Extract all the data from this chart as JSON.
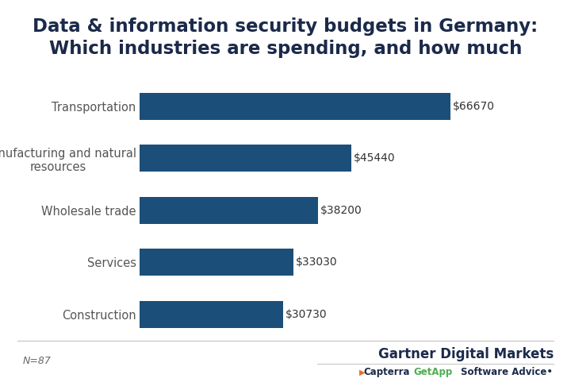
{
  "title": "Data & information security budgets in Germany:\nWhich industries are spending, and how much",
  "categories": [
    "Construction",
    "Services",
    "Wholesale trade",
    "Manufacturing and natural\nresources",
    "Transportation"
  ],
  "values": [
    30730,
    33030,
    38200,
    45440,
    66670
  ],
  "labels": [
    "$30730",
    "$33030",
    "$38200",
    "$45440",
    "$66670"
  ],
  "bar_color": "#1b4f79",
  "background_color": "#ffffff",
  "title_fontsize": 16.5,
  "label_fontsize": 10,
  "tick_fontsize": 10.5,
  "note_text": "N=87",
  "note_fontsize": 9,
  "brand_name": "Gartner Digital Markets",
  "brand_fontsize": 12,
  "capterra_color": "#e8702a",
  "getapp_color": "#4caf50",
  "software_advice_color": "#1b2a4a",
  "xlim": [
    0,
    76000
  ],
  "grid_color": "#d0d0d0",
  "title_color": "#1b2a4a",
  "tick_color": "#555555",
  "label_color": "#333333"
}
